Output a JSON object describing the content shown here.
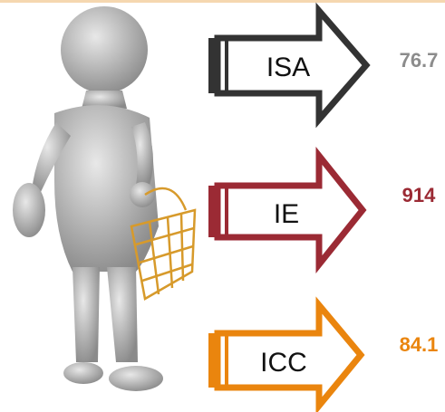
{
  "items": [
    {
      "label": "ISA",
      "value": 76.7
    },
    {
      "label": "IE",
      "value": 914
    },
    {
      "label": "ICC",
      "value": 84.1
    }
  ]
}
